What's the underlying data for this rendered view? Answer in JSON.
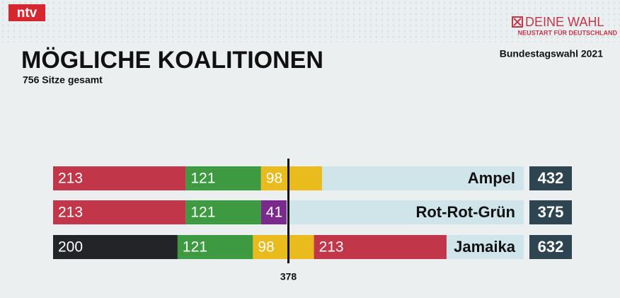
{
  "header": {
    "logo": "ntv",
    "brand": "DEINE WAHL",
    "brand_sub": "NEUSTART FÜR DEUTSCHLAND"
  },
  "chart_data": {
    "type": "stacked-bar-h",
    "title": "MÖGLICHE KOALITIONEN",
    "subtitle": "756 Sitze gesamt",
    "note": "Bundestagswahl 2021",
    "xlim": [
      0,
      756
    ],
    "xticks": [
      378
    ],
    "bars": [
      {
        "label": "Ampel",
        "total": 432,
        "segments": [
          {
            "value": 213,
            "color": "#c2364a"
          },
          {
            "value": 121,
            "color": "#3d9a41"
          },
          {
            "value": 98,
            "color": "#e9bb1d"
          }
        ]
      },
      {
        "label": "Rot-Rot-Grün",
        "total": 375,
        "segments": [
          {
            "value": 213,
            "color": "#c2364a"
          },
          {
            "value": 121,
            "color": "#3d9a41"
          },
          {
            "value": 41,
            "color": "#7a2a8c"
          }
        ]
      },
      {
        "label": "Jamaika",
        "total": 632,
        "segments": [
          {
            "value": 200,
            "color": "#222428"
          },
          {
            "value": 121,
            "color": "#3d9a41"
          },
          {
            "value": 98,
            "color": "#e9bb1d"
          },
          {
            "value": 213,
            "color": "#c2364a"
          }
        ]
      }
    ]
  }
}
